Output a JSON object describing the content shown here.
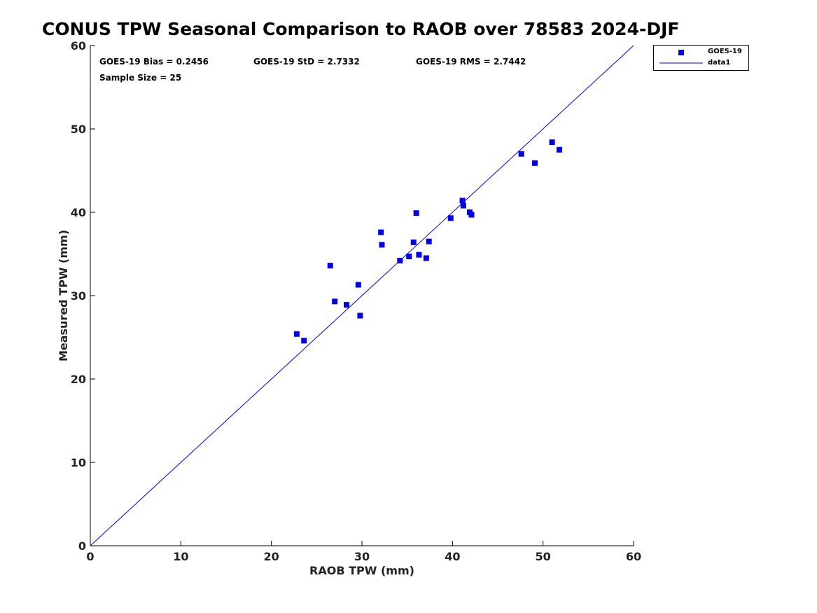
{
  "chart_data": {
    "type": "scatter",
    "title": "CONUS TPW Seasonal Comparison to RAOB over 78583 2024-DJF",
    "xlabel": "RAOB TPW (mm)",
    "ylabel": "Measured TPW (mm)",
    "xlim": [
      0,
      60
    ],
    "ylim": [
      0,
      60
    ],
    "xticks": [
      "0",
      "10",
      "20",
      "30",
      "40",
      "50",
      "60"
    ],
    "yticks": [
      "0",
      "10",
      "20",
      "30",
      "40",
      "50",
      "60"
    ],
    "annotations": {
      "bias": "GOES-19 Bias = 0.2456",
      "std": "GOES-19 StD = 2.7332",
      "rms": "GOES-19 RMS = 2.7442",
      "sample": "Sample Size = 25"
    },
    "legend": {
      "position": "top-right-outside",
      "entries": [
        "GOES-19",
        "data1"
      ]
    },
    "series": [
      {
        "name": "GOES-19",
        "color": "#0000e6",
        "marker": "square",
        "points": [
          [
            22.8,
            25.4
          ],
          [
            23.6,
            24.6
          ],
          [
            26.5,
            33.6
          ],
          [
            27.0,
            29.3
          ],
          [
            28.3,
            28.9
          ],
          [
            29.6,
            31.3
          ],
          [
            29.8,
            27.6
          ],
          [
            32.1,
            37.6
          ],
          [
            32.2,
            36.1
          ],
          [
            34.2,
            34.2
          ],
          [
            35.2,
            34.7
          ],
          [
            35.7,
            36.4
          ],
          [
            36.0,
            39.9
          ],
          [
            36.3,
            34.9
          ],
          [
            37.1,
            34.5
          ],
          [
            37.4,
            36.5
          ],
          [
            39.8,
            39.3
          ],
          [
            41.1,
            41.4
          ],
          [
            41.2,
            40.8
          ],
          [
            41.9,
            40.0
          ],
          [
            42.1,
            39.7
          ],
          [
            47.6,
            47.0
          ],
          [
            49.1,
            45.9
          ],
          [
            51.0,
            48.4
          ],
          [
            51.8,
            47.5
          ]
        ]
      },
      {
        "name": "data1",
        "color": "#0000e6",
        "type": "line",
        "x": [
          0,
          60
        ],
        "y": [
          0,
          60
        ]
      }
    ]
  }
}
